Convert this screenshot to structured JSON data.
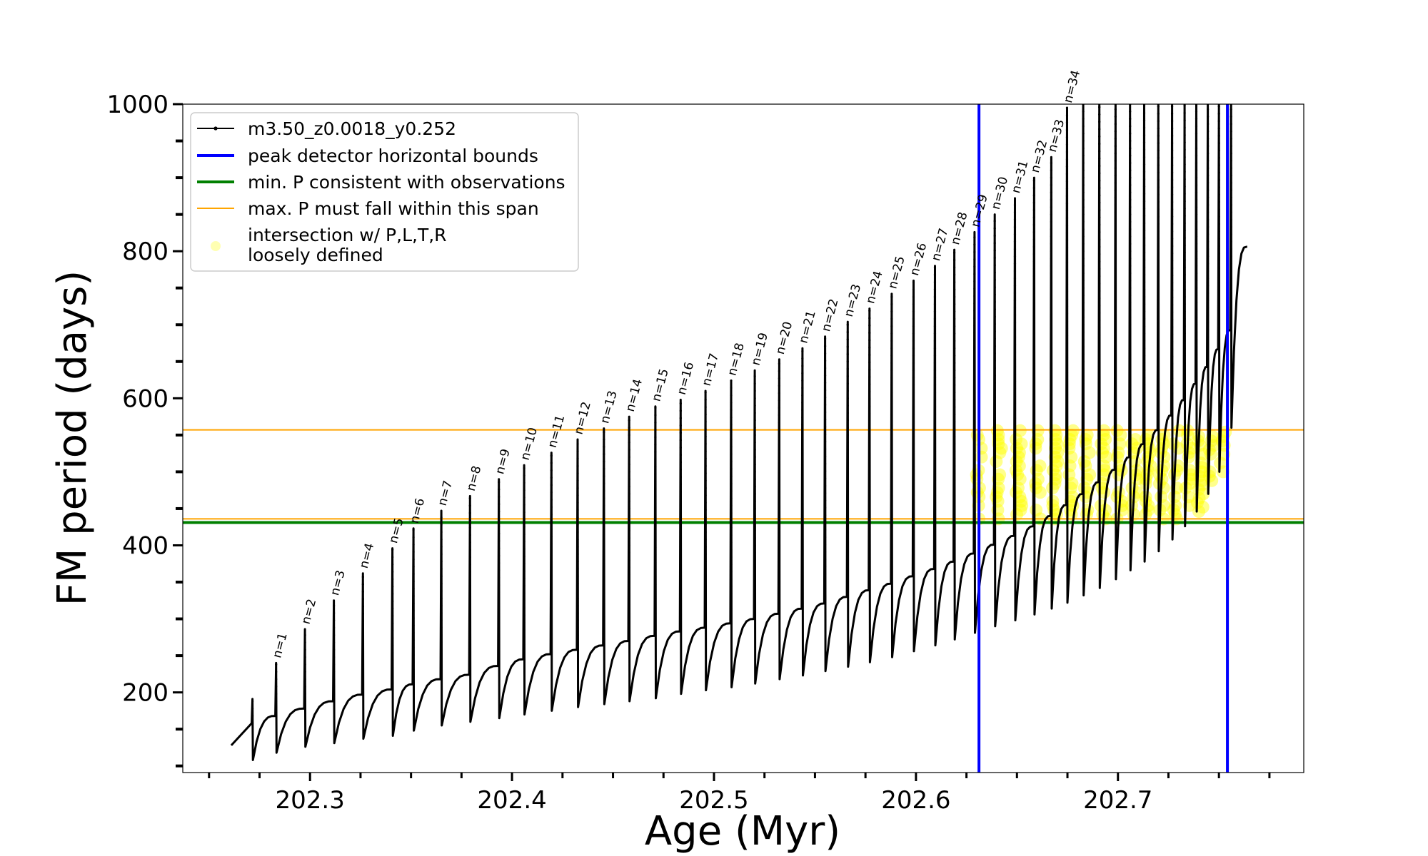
{
  "chart_data": {
    "type": "line",
    "xlabel": "Age (Myr)",
    "ylabel": "FM period (days)",
    "xlim": [
      202.237,
      202.792
    ],
    "ylim": [
      91,
      1000
    ],
    "xticks": [
      202.3,
      202.4,
      202.5,
      202.6,
      202.7
    ],
    "xtick_labels": [
      "202.3",
      "202.4",
      "202.5",
      "202.6",
      "202.7"
    ],
    "yticks": [
      200,
      400,
      600,
      800,
      1000
    ],
    "ytick_labels": [
      "200",
      "400",
      "600",
      "800",
      "1000"
    ],
    "grid": false,
    "legend_position": "top-left",
    "legend": [
      {
        "label": "m3.50_z0.0018_y0.252",
        "color": "#000000",
        "kind": "line-marker"
      },
      {
        "label": "peak detector horizontal bounds",
        "color": "#0000ff",
        "kind": "line"
      },
      {
        "label": "min. P consistent with observations",
        "color": "#008000",
        "kind": "line"
      },
      {
        "label": "max. P must fall within this span",
        "color": "#ffa500",
        "kind": "line"
      },
      {
        "label": "intersection w/ P,L,T,R\nloosely defined",
        "label_lines": [
          "intersection w/ P,L,T,R",
          "loosely defined"
        ],
        "color": "#ffff00",
        "kind": "marker"
      }
    ],
    "series": [
      {
        "name": "m3.50_z0.0018_y0.252",
        "color": "#000000",
        "start": {
          "age": 202.261,
          "period": 128
        },
        "end": {
          "age": 202.764,
          "period": 806
        },
        "pulses": [
          {
            "n": 0,
            "age": 202.2715,
            "peak": 191,
            "dip": 108,
            "base": 158
          },
          {
            "n": 1,
            "age": 202.2832,
            "peak": 240,
            "dip": 118,
            "base": 168
          },
          {
            "n": 2,
            "age": 202.2975,
            "peak": 286,
            "dip": 126,
            "base": 178
          },
          {
            "n": 3,
            "age": 202.3118,
            "peak": 325,
            "dip": 131,
            "base": 188
          },
          {
            "n": 4,
            "age": 202.3262,
            "peak": 362,
            "dip": 137,
            "base": 197
          },
          {
            "n": 5,
            "age": 202.3408,
            "peak": 396,
            "dip": 141,
            "base": 204
          },
          {
            "n": 6,
            "age": 202.3512,
            "peak": 423,
            "dip": 148,
            "base": 211
          },
          {
            "n": 7,
            "age": 202.365,
            "peak": 447,
            "dip": 155,
            "base": 218
          },
          {
            "n": 8,
            "age": 202.3792,
            "peak": 467,
            "dip": 160,
            "base": 224
          },
          {
            "n": 9,
            "age": 202.3935,
            "peak": 490,
            "dip": 165,
            "base": 236
          },
          {
            "n": 10,
            "age": 202.406,
            "peak": 509,
            "dip": 170,
            "base": 245
          },
          {
            "n": 11,
            "age": 202.4195,
            "peak": 526,
            "dip": 175,
            "base": 252
          },
          {
            "n": 12,
            "age": 202.4325,
            "peak": 544,
            "dip": 180,
            "base": 258
          },
          {
            "n": 13,
            "age": 202.4455,
            "peak": 559,
            "dip": 184,
            "base": 264
          },
          {
            "n": 14,
            "age": 202.458,
            "peak": 575,
            "dip": 188,
            "base": 270
          },
          {
            "n": 15,
            "age": 202.471,
            "peak": 589,
            "dip": 192,
            "base": 277
          },
          {
            "n": 16,
            "age": 202.4835,
            "peak": 598,
            "dip": 198,
            "base": 283
          },
          {
            "n": 17,
            "age": 202.4958,
            "peak": 610,
            "dip": 203,
            "base": 288
          },
          {
            "n": 18,
            "age": 202.5085,
            "peak": 624,
            "dip": 207,
            "base": 294
          },
          {
            "n": 19,
            "age": 202.5202,
            "peak": 638,
            "dip": 212,
            "base": 300
          },
          {
            "n": 20,
            "age": 202.5323,
            "peak": 653,
            "dip": 218,
            "base": 307
          },
          {
            "n": 21,
            "age": 202.5438,
            "peak": 668,
            "dip": 223,
            "base": 314
          },
          {
            "n": 22,
            "age": 202.555,
            "peak": 684,
            "dip": 229,
            "base": 321
          },
          {
            "n": 23,
            "age": 202.5662,
            "peak": 704,
            "dip": 235,
            "base": 330
          },
          {
            "n": 24,
            "age": 202.577,
            "peak": 722,
            "dip": 241,
            "base": 339
          },
          {
            "n": 25,
            "age": 202.588,
            "peak": 742,
            "dip": 248,
            "base": 348
          },
          {
            "n": 26,
            "age": 202.5988,
            "peak": 760,
            "dip": 256,
            "base": 358
          },
          {
            "n": 27,
            "age": 202.6094,
            "peak": 780,
            "dip": 264,
            "base": 368
          },
          {
            "n": 28,
            "age": 202.619,
            "peak": 802,
            "dip": 272,
            "base": 378
          },
          {
            "n": 29,
            "age": 202.629,
            "peak": 826,
            "dip": 281,
            "base": 389
          },
          {
            "n": 30,
            "age": 202.639,
            "peak": 850,
            "dip": 290,
            "base": 401
          },
          {
            "n": 31,
            "age": 202.649,
            "peak": 872,
            "dip": 298,
            "base": 413
          },
          {
            "n": 32,
            "age": 202.6585,
            "peak": 900,
            "dip": 306,
            "base": 426
          },
          {
            "n": 33,
            "age": 202.667,
            "peak": 928,
            "dip": 314,
            "base": 440
          },
          {
            "n": 34,
            "age": 202.6748,
            "peak": 995,
            "dip": 322,
            "base": 455
          },
          {
            "n": 35,
            "age": 202.6828,
            "peak": 1000,
            "dip": 332,
            "base": 470
          },
          {
            "n": 36,
            "age": 202.6908,
            "peak": 1000,
            "dip": 342,
            "base": 486
          },
          {
            "n": 37,
            "age": 202.6988,
            "peak": 1000,
            "dip": 354,
            "base": 503
          },
          {
            "n": 38,
            "age": 202.706,
            "peak": 1000,
            "dip": 366,
            "base": 520
          },
          {
            "n": 39,
            "age": 202.713,
            "peak": 1000,
            "dip": 378,
            "base": 538
          },
          {
            "n": 40,
            "age": 202.72,
            "peak": 1000,
            "dip": 392,
            "base": 557
          },
          {
            "n": 41,
            "age": 202.7268,
            "peak": 1000,
            "dip": 408,
            "base": 577
          },
          {
            "n": 42,
            "age": 202.733,
            "peak": 1000,
            "dip": 426,
            "base": 598
          },
          {
            "n": 43,
            "age": 202.7388,
            "peak": 1000,
            "dip": 446,
            "base": 620
          },
          {
            "n": 44,
            "age": 202.7445,
            "peak": 1000,
            "dip": 470,
            "base": 643
          },
          {
            "n": 45,
            "age": 202.75,
            "peak": 1000,
            "dip": 500,
            "base": 667
          },
          {
            "n": 46,
            "age": 202.756,
            "peak": 1000,
            "dip": 560,
            "base": 693
          }
        ]
      }
    ],
    "peak_labels": [
      "n=1",
      "n=2",
      "n=3",
      "n=4",
      "n=5",
      "n=6",
      "n=7",
      "n=8",
      "n=9",
      "n=10",
      "n=11",
      "n=12",
      "n=13",
      "n=14",
      "n=15",
      "n=16",
      "n=17",
      "n=18",
      "n=19",
      "n=20",
      "n=21",
      "n=22",
      "n=23",
      "n=24",
      "n=25",
      "n=26",
      "n=27",
      "n=28",
      "n=29",
      "n=30",
      "n=31",
      "n=32",
      "n=33",
      "n=34"
    ],
    "vertical_lines": [
      {
        "x": 202.6312,
        "color": "#0000ff",
        "label": "peak detector horizontal bounds"
      },
      {
        "x": 202.7542,
        "color": "#0000ff",
        "label": "peak detector horizontal bounds"
      }
    ],
    "horizontal_lines": [
      {
        "y": 431,
        "color": "#008000",
        "label": "min. P consistent with observations"
      },
      {
        "y": 436,
        "color": "#ffa500",
        "label": "max. P must fall within this span"
      },
      {
        "y": 557,
        "color": "#ffa500",
        "label": "max. P must fall within this span"
      }
    ],
    "intersection_region": {
      "color": "#ffff00",
      "age_range": [
        202.628,
        202.753
      ],
      "period_range": [
        436,
        557
      ]
    }
  }
}
